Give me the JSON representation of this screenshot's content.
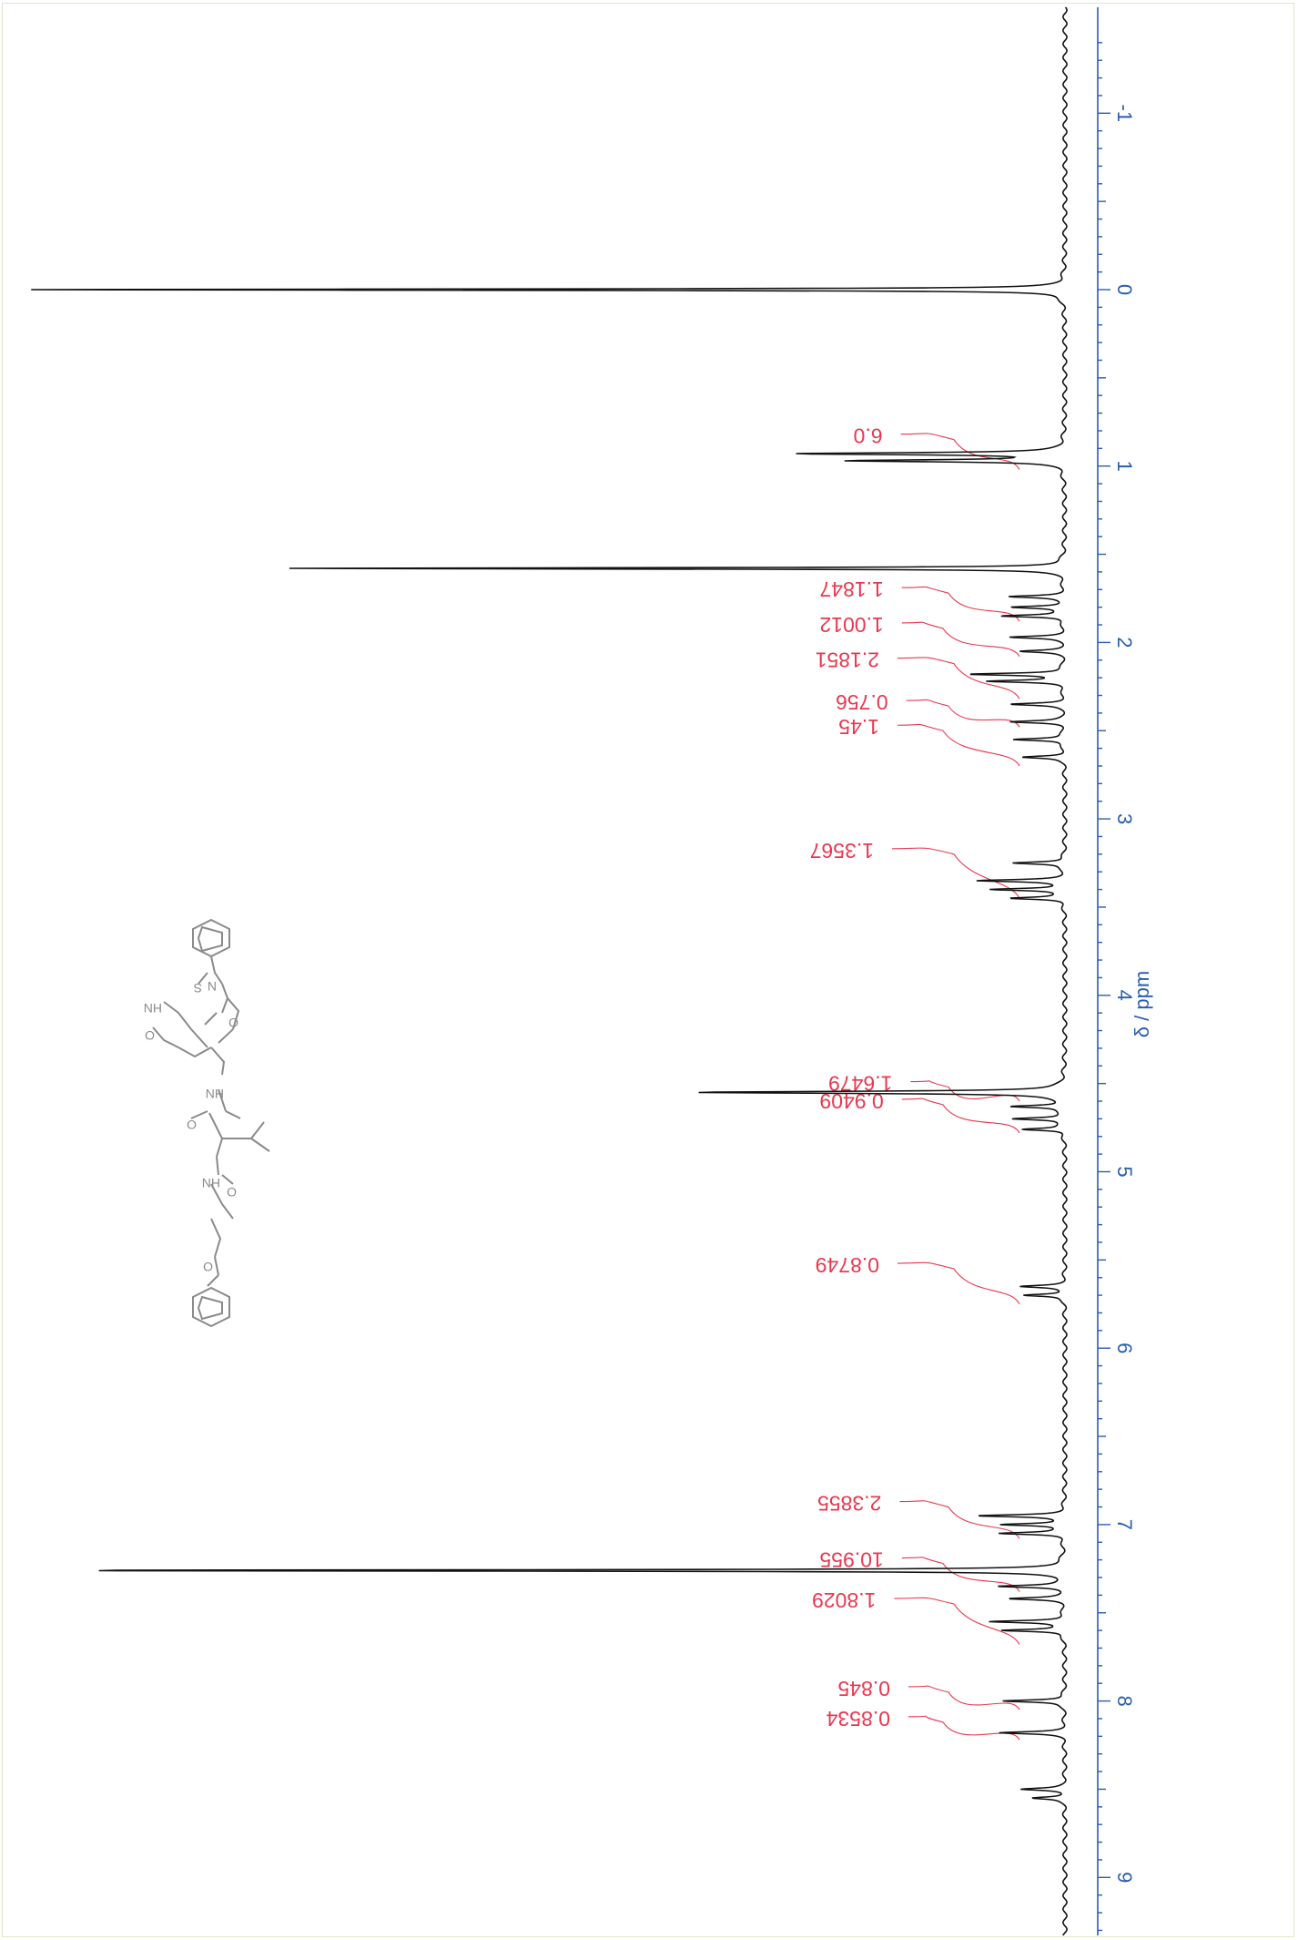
{
  "chart_data": {
    "type": "line",
    "xlabel": "δ / ppm",
    "xlim": [
      -1.45,
      9.35
    ],
    "x_ticks": [
      -1,
      0,
      1,
      2,
      3,
      4,
      5,
      6,
      7,
      8,
      9
    ],
    "orientation": "rotated 90 degrees; shift axis runs top to bottom along the right side",
    "grid": false,
    "legend": "none",
    "colors": {
      "spectrum": "#111111",
      "axis": "#2a5db0",
      "integral": "#e8384f",
      "structure": "#8a8a8a"
    },
    "peaks": [
      {
        "ppm": 0.0,
        "height": 0.97
      },
      {
        "ppm": 0.93,
        "height": 0.25
      },
      {
        "ppm": 0.97,
        "height": 0.2
      },
      {
        "ppm": 1.58,
        "height": 0.73
      },
      {
        "ppm": 1.74,
        "height": 0.05
      },
      {
        "ppm": 1.8,
        "height": 0.05
      },
      {
        "ppm": 1.85,
        "height": 0.06
      },
      {
        "ppm": 1.97,
        "height": 0.05
      },
      {
        "ppm": 2.05,
        "height": 0.04
      },
      {
        "ppm": 2.18,
        "height": 0.09
      },
      {
        "ppm": 2.22,
        "height": 0.07
      },
      {
        "ppm": 2.35,
        "height": 0.05
      },
      {
        "ppm": 2.45,
        "height": 0.05
      },
      {
        "ppm": 2.55,
        "height": 0.05
      },
      {
        "ppm": 2.65,
        "height": 0.04
      },
      {
        "ppm": 3.25,
        "height": 0.05
      },
      {
        "ppm": 3.35,
        "height": 0.08
      },
      {
        "ppm": 3.4,
        "height": 0.07
      },
      {
        "ppm": 3.45,
        "height": 0.05
      },
      {
        "ppm": 4.55,
        "height": 0.35
      },
      {
        "ppm": 4.63,
        "height": 0.05
      },
      {
        "ppm": 4.7,
        "height": 0.05
      },
      {
        "ppm": 4.76,
        "height": 0.04
      },
      {
        "ppm": 5.65,
        "height": 0.04
      },
      {
        "ppm": 5.7,
        "height": 0.04
      },
      {
        "ppm": 6.95,
        "height": 0.08
      },
      {
        "ppm": 7.0,
        "height": 0.06
      },
      {
        "ppm": 7.05,
        "height": 0.06
      },
      {
        "ppm": 7.26,
        "height": 0.99
      },
      {
        "ppm": 7.35,
        "height": 0.06
      },
      {
        "ppm": 7.42,
        "height": 0.05
      },
      {
        "ppm": 7.55,
        "height": 0.07
      },
      {
        "ppm": 7.6,
        "height": 0.06
      },
      {
        "ppm": 8.0,
        "height": 0.06
      },
      {
        "ppm": 8.18,
        "height": 0.06
      },
      {
        "ppm": 8.5,
        "height": 0.04
      },
      {
        "ppm": 8.55,
        "height": 0.03
      }
    ],
    "integrals": [
      {
        "label": "6.0",
        "start": 0.85,
        "end": 1.02
      },
      {
        "label": "1.1847",
        "start": 1.72,
        "end": 1.88
      },
      {
        "label": "1.0012",
        "start": 1.92,
        "end": 2.08
      },
      {
        "label": "2.1851",
        "start": 2.12,
        "end": 2.32
      },
      {
        "label": "0.756",
        "start": 2.36,
        "end": 2.48
      },
      {
        "label": "1.45",
        "start": 2.5,
        "end": 2.7
      },
      {
        "label": "1.3567",
        "start": 3.2,
        "end": 3.45
      },
      {
        "label": "1.6479",
        "start": 4.52,
        "end": 4.6
      },
      {
        "label": "0.9409",
        "start": 4.62,
        "end": 4.78
      },
      {
        "label": "0.8749",
        "start": 5.55,
        "end": 5.75
      },
      {
        "label": "2.3855",
        "start": 6.9,
        "end": 7.08
      },
      {
        "label": "10.955",
        "start": 7.22,
        "end": 7.38
      },
      {
        "label": "1.8029",
        "start": 7.45,
        "end": 7.68
      },
      {
        "label": "0.845",
        "start": 7.95,
        "end": 8.05
      },
      {
        "label": "0.8534",
        "start": 8.12,
        "end": 8.22
      }
    ]
  }
}
